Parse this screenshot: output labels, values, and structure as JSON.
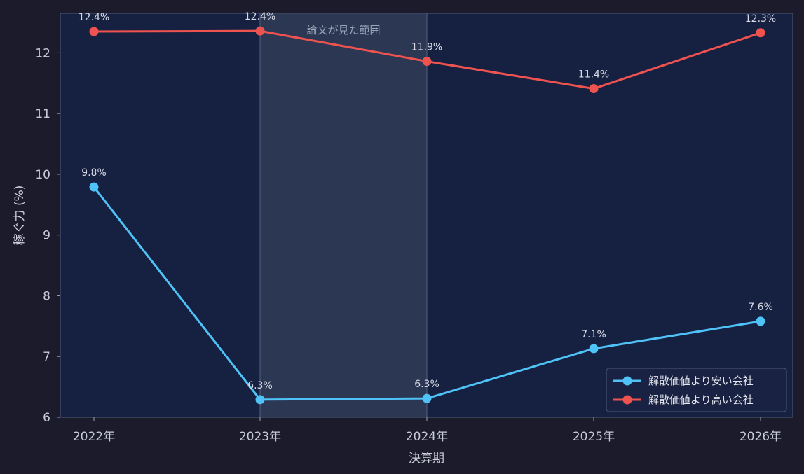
{
  "chart_data": {
    "type": "line",
    "xlabel": "決算期",
    "ylabel": "稼ぐ力 (%)",
    "categories": [
      "2022年",
      "2023年",
      "2024年",
      "2025年",
      "2026年"
    ],
    "ylim": [
      6,
      12.65
    ],
    "yticks": [
      "6",
      "7",
      "8",
      "9",
      "10",
      "11",
      "12"
    ],
    "grid": false,
    "legend_position": "lower-right",
    "highlight": {
      "from": "2023年",
      "to": "2024年",
      "label": "論文が見た範囲"
    },
    "series": [
      {
        "name": "解散価値より安い会社",
        "color": "#4fc3f7",
        "values": [
          9.79,
          6.29,
          6.31,
          7.13,
          7.58
        ],
        "labels": [
          "9.8%",
          "6.3%",
          "6.3%",
          "7.1%",
          "7.6%"
        ]
      },
      {
        "name": "解散価値より高い会社",
        "color": "#ef5350",
        "values": [
          12.35,
          12.36,
          11.86,
          11.41,
          12.33
        ],
        "labels": [
          "12.4%",
          "12.4%",
          "11.9%",
          "11.4%",
          "12.3%"
        ]
      }
    ]
  }
}
